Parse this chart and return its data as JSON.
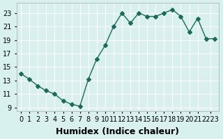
{
  "x": [
    0,
    1,
    2,
    3,
    4,
    5,
    6,
    7,
    8,
    9,
    10,
    11,
    12,
    13,
    14,
    15,
    16,
    17,
    18,
    19,
    20,
    21,
    22,
    23
  ],
  "y": [
    14.0,
    13.2,
    12.2,
    11.5,
    11.0,
    10.0,
    9.5,
    9.2,
    13.2,
    16.2,
    18.2,
    21.0,
    23.0,
    21.5,
    23.0,
    22.5,
    22.5,
    23.0,
    23.5,
    22.5,
    20.2,
    22.2,
    19.2,
    19.2
  ],
  "line_color": "#1a6b5a",
  "marker": "D",
  "marker_size": 3,
  "bg_color": "#d8f0ee",
  "grid_color": "#ffffff",
  "xlabel": "Humidex (Indice chaleur)",
  "xlim": [
    -0.5,
    23.5
  ],
  "ylim": [
    8.5,
    24.5
  ],
  "yticks": [
    9,
    11,
    13,
    15,
    17,
    19,
    21,
    23
  ],
  "xtick_labels": [
    "0",
    "1",
    "2",
    "3",
    "4",
    "5",
    "6",
    "7",
    "8",
    "9",
    "10",
    "11",
    "12",
    "13",
    "14",
    "15",
    "16",
    "17",
    "18",
    "19",
    "20",
    "21",
    "2223"
  ],
  "xtick_positions": [
    0,
    1,
    2,
    3,
    4,
    5,
    6,
    7,
    8,
    9,
    10,
    11,
    12,
    13,
    14,
    15,
    16,
    17,
    18,
    19,
    20,
    21,
    22.5
  ],
  "font_color": "#000000",
  "xlabel_fontsize": 9,
  "tick_fontsize": 7.0
}
